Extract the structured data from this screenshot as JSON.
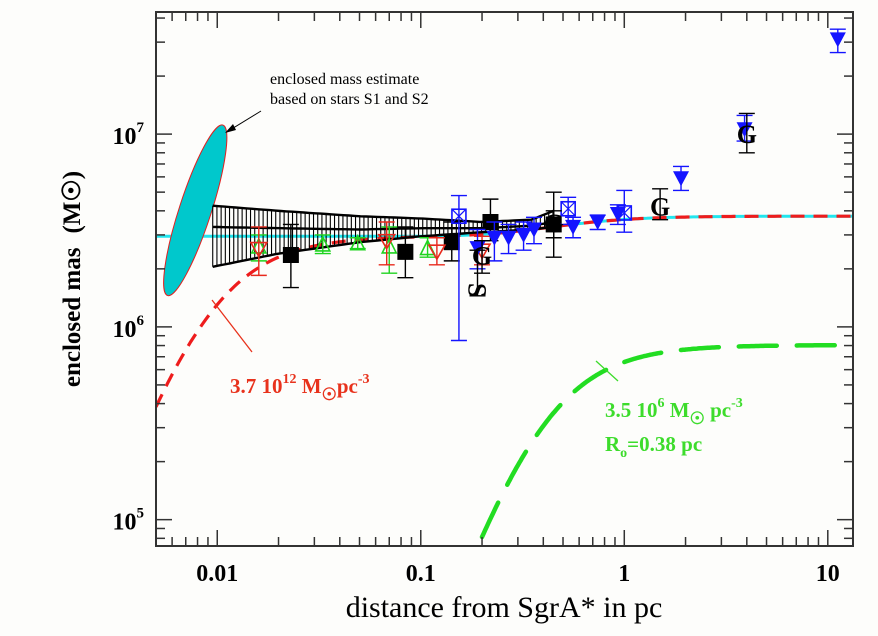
{
  "chart_data": {
    "type": "scatter",
    "title": "",
    "xlabel": "distance from SgrA* in pc",
    "ylabel": "enclosed mas",
    "ylabel_unit": "(M☉)",
    "xscale": "log",
    "yscale": "log",
    "xlim": [
      0.005,
      13.3
    ],
    "ylim": [
      73000,
      43000000
    ],
    "x_ticks": [
      {
        "value": 0.01,
        "label": "0.01"
      },
      {
        "value": 0.1,
        "label": "0.1"
      },
      {
        "value": 1,
        "label": "1"
      },
      {
        "value": 10,
        "label": "10"
      }
    ],
    "y_ticks": [
      {
        "value": 100000,
        "base": "10",
        "exp": "5"
      },
      {
        "value": 1000000,
        "base": "10",
        "exp": "6"
      },
      {
        "value": 10000000,
        "base": "10",
        "exp": "7"
      }
    ],
    "grid": false,
    "colors": {
      "black": "#000000",
      "green": "#1fd31f",
      "red": "#e8291c",
      "blue": "#1414ff",
      "cyan": "#22e6ee",
      "ellipse_fill": "#00c8cc",
      "bh_plus_cluster": "#ee1c1c",
      "cluster_only": "#22dd22"
    },
    "series": [
      {
        "name": "black filled squares",
        "marker": "square-filled",
        "color": "#000000",
        "points": [
          {
            "x": 0.023,
            "y": 2360000,
            "ylo": 1600000,
            "yhi": 3400000
          },
          {
            "x": 0.084,
            "y": 2450000,
            "ylo": 1800000,
            "yhi": 3300000
          },
          {
            "x": 0.142,
            "y": 2750000,
            "ylo": 2200000,
            "yhi": 3500000
          },
          {
            "x": 0.22,
            "y": 3500000,
            "ylo": 2800000,
            "yhi": 4600000
          },
          {
            "x": 0.45,
            "y": 3400000,
            "ylo": 2300000,
            "yhi": 5000000
          }
        ]
      },
      {
        "name": "green open triangles",
        "marker": "triangle-open",
        "color": "#1fd31f",
        "points": [
          {
            "x": 0.016,
            "y": 2600000,
            "ylo": 2200000,
            "yhi": 3000000
          },
          {
            "x": 0.033,
            "y": 2660000,
            "ylo": 2400000,
            "yhi": 3000000
          },
          {
            "x": 0.049,
            "y": 2700000,
            "ylo": 2550000,
            "yhi": 2900000
          },
          {
            "x": 0.07,
            "y": 2600000,
            "ylo": 1900000,
            "yhi": 3300000
          },
          {
            "x": 0.108,
            "y": 2550000,
            "ylo": 2300000,
            "yhi": 2900000
          }
        ]
      },
      {
        "name": "red open inverted triangles",
        "marker": "triangle-down-open",
        "color": "#e8291c",
        "points": [
          {
            "x": 0.016,
            "y": 2550000,
            "ylo": 1850000,
            "yhi": 3300000
          },
          {
            "x": 0.068,
            "y": 2800000,
            "ylo": 2100000,
            "yhi": 3500000
          },
          {
            "x": 0.12,
            "y": 2470000,
            "ylo": 2100000,
            "yhi": 2900000
          },
          {
            "x": 0.2,
            "y": 2500000,
            "ylo": 2100000,
            "yhi": 2950000
          }
        ]
      },
      {
        "name": "blue open boxed crosses",
        "marker": "square-cross-open",
        "color": "#1414ff",
        "points": [
          {
            "x": 0.154,
            "y": 3750000,
            "ylo": 850000,
            "yhi": 4800000
          },
          {
            "x": 0.53,
            "y": 4100000,
            "ylo": 3400000,
            "yhi": 4700000
          },
          {
            "x": 1.0,
            "y": 3900000,
            "ylo": 3100000,
            "yhi": 5100000
          }
        ]
      },
      {
        "name": "blue filled inverted triangles",
        "marker": "triangle-down-filled",
        "color": "#1414ff",
        "points": [
          {
            "x": 0.19,
            "y": 2560000,
            "ylo": 2000000,
            "yhi": 3200000
          },
          {
            "x": 0.23,
            "y": 2900000,
            "ylo": 2200000,
            "yhi": 3500000
          },
          {
            "x": 0.27,
            "y": 2900000,
            "ylo": 2400000,
            "yhi": 3400000
          },
          {
            "x": 0.32,
            "y": 3000000,
            "ylo": 2500000,
            "yhi": 3500000
          },
          {
            "x": 0.36,
            "y": 3200000,
            "ylo": 2700000,
            "yhi": 3700000
          },
          {
            "x": 0.56,
            "y": 3300000,
            "ylo": 2900000,
            "yhi": 3700000
          },
          {
            "x": 0.74,
            "y": 3500000,
            "ylo": 3200000,
            "yhi": 3800000
          },
          {
            "x": 0.93,
            "y": 3850000,
            "ylo": 3400000,
            "yhi": 4300000
          },
          {
            "x": 1.9,
            "y": 5900000,
            "ylo": 5100000,
            "yhi": 6800000
          },
          {
            "x": 3.9,
            "y": 10600000,
            "ylo": 9200000,
            "yhi": 12500000
          },
          {
            "x": 11.2,
            "y": 31000000,
            "ylo": 26500000,
            "yhi": 35000000
          }
        ]
      },
      {
        "name": "letter markers",
        "marker": "text",
        "color": "#000000",
        "points": [
          {
            "x": 0.2,
            "y": 2350000,
            "label": "G",
            "ylo": 1900000,
            "yhi": 2800000
          },
          {
            "x": 0.45,
            "y": 3450000,
            "label": "G",
            "ylo": 2900000,
            "yhi": 4000000
          },
          {
            "x": 1.5,
            "y": 4200000,
            "label": "G",
            "ylo": 3600000,
            "yhi": 5200000
          },
          {
            "x": 4.0,
            "y": 10000000,
            "label": "G",
            "ylo": 8000000,
            "yhi": 12800000
          },
          {
            "x": 0.19,
            "y": 1550000,
            "label": "S",
            "ylo": 1450000,
            "yhi": 2500000
          }
        ]
      }
    ],
    "band": {
      "name": "black hatched uncertainty band",
      "color": "#000000",
      "x": [
        0.0095,
        0.02,
        0.05,
        0.1,
        0.2,
        0.35,
        0.45
      ],
      "upper": [
        4250000,
        4000000,
        3750000,
        3650000,
        3500000,
        3600000,
        4000000
      ],
      "middle": [
        3300000,
        3250000,
        3200000,
        3250000,
        3250000,
        3350000,
        3500000
      ],
      "lower": [
        2050000,
        2400000,
        2750000,
        2950000,
        3100000,
        3200000,
        3300000
      ]
    },
    "curves": [
      {
        "name": "point mass line",
        "style": "solid",
        "color": "#22e6ee",
        "x_range": [
          0.005,
          0.45
        ],
        "constant_y": 2950000
      },
      {
        "name": "black hole plus dark cluster",
        "style": "dashed",
        "color": "#ee1c1c",
        "x_range": [
          0.005,
          13.3
        ]
      },
      {
        "name": "stellar cluster",
        "style": "long-dashed",
        "color": "#22dd22",
        "x_range": [
          0.2,
          13.3
        ]
      }
    ],
    "ellipse": {
      "name": "S1/S2 mass estimate region",
      "x_range": [
        0.0062,
        0.0098
      ],
      "y_range": [
        1350000,
        12000000
      ]
    },
    "annotations": [
      {
        "text_lines": [
          "enclosed mass estimate",
          "based on stars S1 and S2"
        ],
        "color": "#000000",
        "arrow": true
      },
      {
        "text_parts": [
          "3.7 10",
          "12",
          " M",
          "☉",
          "pc",
          "-3"
        ],
        "color": "#e8321c"
      },
      {
        "text_parts": [
          "3.5 10",
          "6",
          " M",
          "☉",
          " pc",
          "-3"
        ],
        "line2": [
          "R",
          "o",
          "=0.38 pc"
        ],
        "color": "#3ddc2c"
      }
    ]
  }
}
